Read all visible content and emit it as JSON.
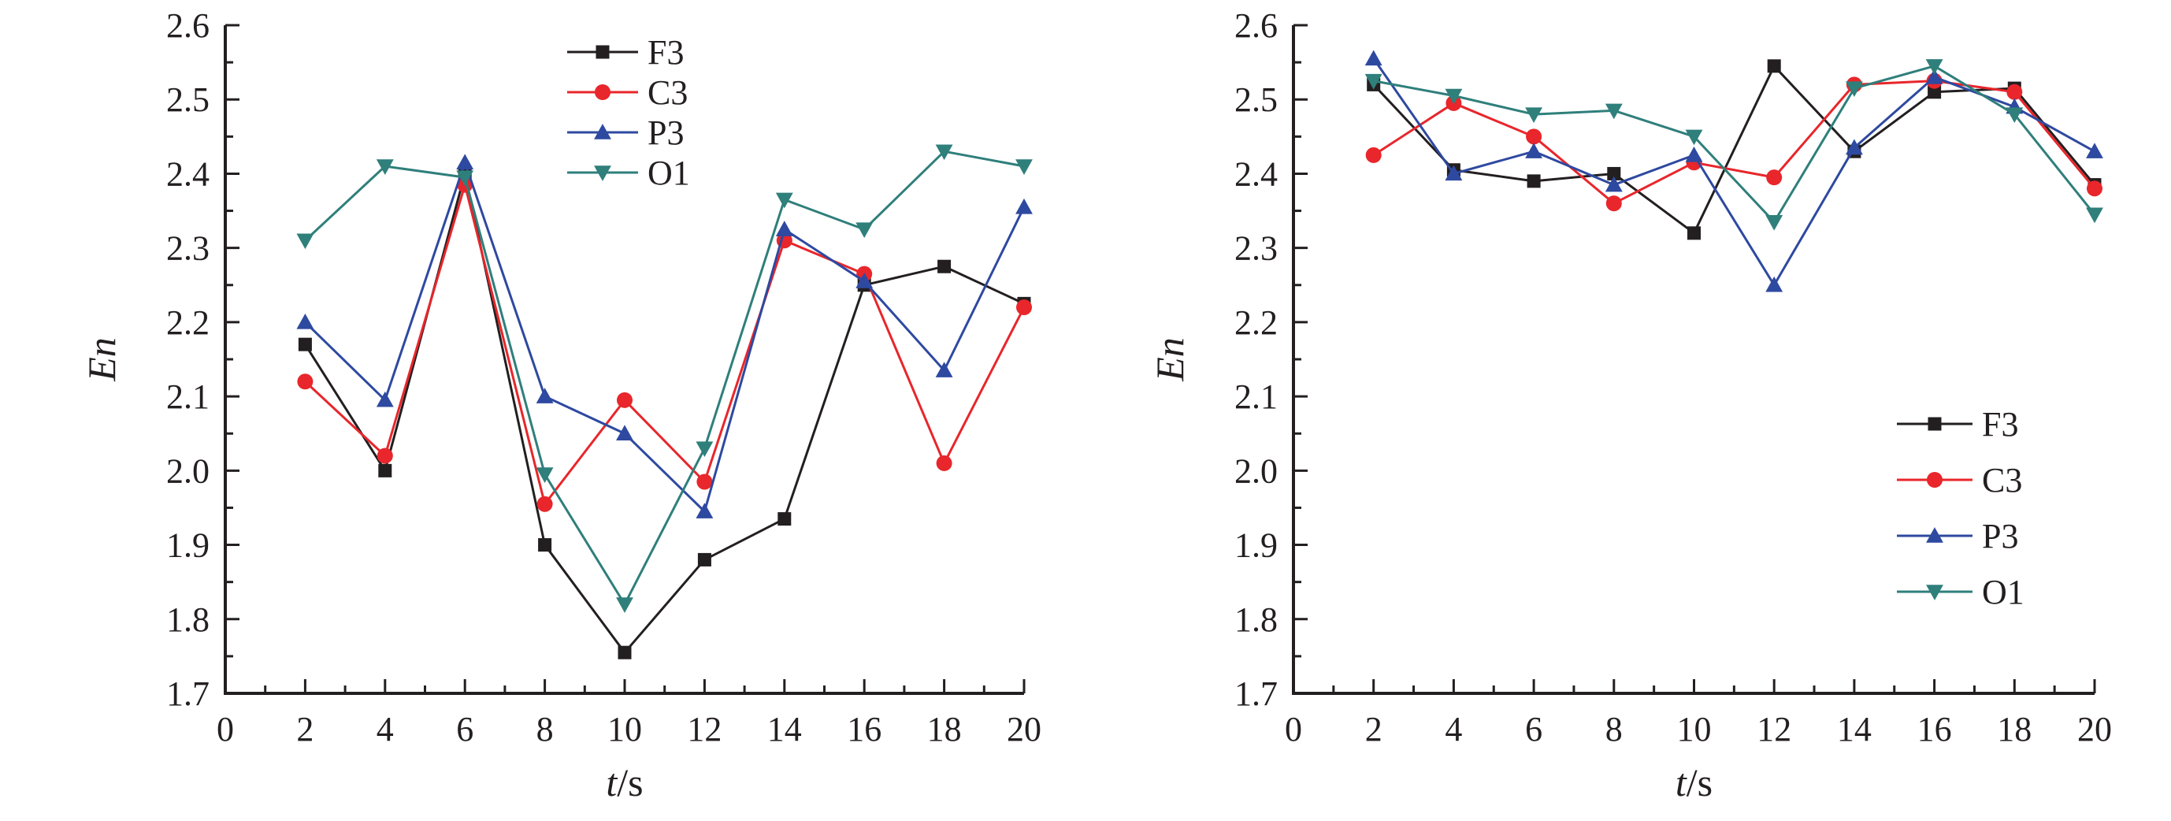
{
  "figure": {
    "panel_count": 2
  },
  "chart_data": [
    {
      "type": "line",
      "title": "",
      "xlabel": "t/s",
      "xlabel_italic": "t",
      "xlabel_unit": "/s",
      "ylabel": "En",
      "xlim": [
        0,
        20
      ],
      "ylim": [
        1.7,
        2.6
      ],
      "xticks": [
        "0",
        "2",
        "4",
        "6",
        "8",
        "10",
        "12",
        "14",
        "16",
        "18",
        "20"
      ],
      "yticks": [
        "1.7",
        "1.8",
        "1.9",
        "2.0",
        "2.1",
        "2.2",
        "2.3",
        "2.4",
        "2.5",
        "2.6"
      ],
      "legend_position": "top-center",
      "x": [
        2,
        4,
        6,
        8,
        10,
        12,
        14,
        16,
        18,
        20
      ],
      "series": [
        {
          "name": "F3",
          "color": "#231f20",
          "marker": "square",
          "values": [
            2.17,
            2.0,
            2.4,
            1.9,
            1.755,
            1.88,
            1.935,
            2.25,
            2.275,
            2.225
          ]
        },
        {
          "name": "C3",
          "color": "#e8262b",
          "marker": "circle",
          "values": [
            2.12,
            2.02,
            2.385,
            1.955,
            2.095,
            1.985,
            2.31,
            2.265,
            2.01,
            2.22
          ]
        },
        {
          "name": "P3",
          "color": "#2e49a0",
          "marker": "triangle-up",
          "values": [
            2.2,
            2.095,
            2.415,
            2.1,
            2.05,
            1.945,
            2.325,
            2.255,
            2.135,
            2.355
          ]
        },
        {
          "name": "O1",
          "color": "#2f7f7b",
          "marker": "triangle-down",
          "values": [
            2.31,
            2.41,
            2.395,
            1.995,
            1.82,
            2.03,
            2.365,
            2.325,
            2.43,
            2.41
          ]
        }
      ]
    },
    {
      "type": "line",
      "title": "",
      "xlabel": "t/s",
      "xlabel_italic": "t",
      "xlabel_unit": "/s",
      "ylabel": "En",
      "xlim": [
        0,
        20
      ],
      "ylim": [
        1.7,
        2.6
      ],
      "xticks": [
        "0",
        "2",
        "4",
        "6",
        "8",
        "10",
        "12",
        "14",
        "16",
        "18",
        "20"
      ],
      "yticks": [
        "1.7",
        "1.8",
        "1.9",
        "2.0",
        "2.1",
        "2.2",
        "2.3",
        "2.4",
        "2.5",
        "2.6"
      ],
      "legend_position": "bottom-right",
      "x": [
        2,
        4,
        6,
        8,
        10,
        12,
        14,
        16,
        18,
        20
      ],
      "series": [
        {
          "name": "F3",
          "color": "#231f20",
          "marker": "square",
          "values": [
            2.52,
            2.405,
            2.39,
            2.4,
            2.32,
            2.545,
            2.43,
            2.51,
            2.515,
            2.385
          ]
        },
        {
          "name": "C3",
          "color": "#e8262b",
          "marker": "circle",
          "values": [
            2.425,
            2.495,
            2.45,
            2.36,
            2.415,
            2.395,
            2.52,
            2.525,
            2.51,
            2.38
          ]
        },
        {
          "name": "P3",
          "color": "#2e49a0",
          "marker": "triangle-up",
          "values": [
            2.555,
            2.4,
            2.43,
            2.385,
            2.425,
            2.25,
            2.435,
            2.53,
            2.49,
            2.43
          ]
        },
        {
          "name": "O1",
          "color": "#2f7f7b",
          "marker": "triangle-down",
          "values": [
            2.525,
            2.505,
            2.48,
            2.485,
            2.45,
            2.335,
            2.515,
            2.545,
            2.48,
            2.345
          ]
        }
      ]
    }
  ]
}
